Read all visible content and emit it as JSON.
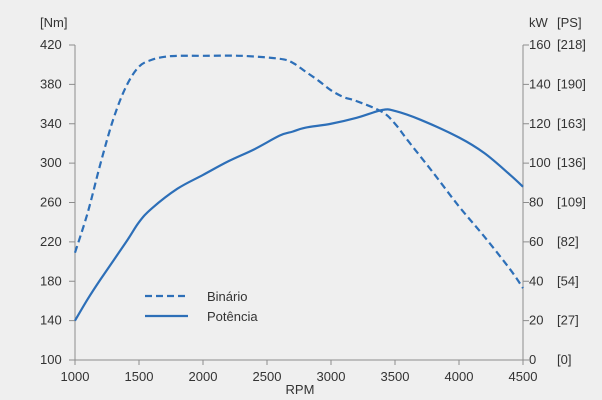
{
  "chart_data": {
    "type": "line",
    "xlabel": "RPM",
    "x_ticks": [
      1000,
      1500,
      2000,
      2500,
      3000,
      3500,
      4000,
      4500
    ],
    "xlim": [
      1000,
      4500
    ],
    "y_left": {
      "unit_label": "[Nm]",
      "ticks": [
        100,
        140,
        180,
        220,
        260,
        300,
        340,
        380,
        420
      ],
      "lim": [
        100,
        420
      ]
    },
    "y_right": {
      "unit_label_kw": "kW",
      "unit_label_ps": "[PS]",
      "ticks": [
        {
          "kw": 0,
          "kw_label": "0",
          "ps_label": "[0]"
        },
        {
          "kw": 20,
          "kw_label": "20",
          "ps_label": "[27]"
        },
        {
          "kw": 40,
          "kw_label": "40",
          "ps_label": "[54]"
        },
        {
          "kw": 60,
          "kw_label": "60",
          "ps_label": "[82]"
        },
        {
          "kw": 80,
          "kw_label": "80",
          "ps_label": "[109]"
        },
        {
          "kw": 100,
          "kw_label": "100",
          "ps_label": "[136]"
        },
        {
          "kw": 120,
          "kw_label": "120",
          "ps_label": "[163]"
        },
        {
          "kw": 140,
          "kw_label": "140",
          "ps_label": "[190]"
        },
        {
          "kw": 160,
          "kw_label": "160",
          "ps_label": "[218]"
        }
      ],
      "lim": [
        0,
        160
      ]
    },
    "legend_position": "bottom-left",
    "series": [
      {
        "name": "Binário",
        "axis": "left",
        "style": "dashed",
        "color": "#2d6fb8",
        "points": [
          [
            1000,
            209
          ],
          [
            1100,
            250
          ],
          [
            1200,
            300
          ],
          [
            1300,
            345
          ],
          [
            1400,
            378
          ],
          [
            1500,
            398
          ],
          [
            1600,
            405
          ],
          [
            1700,
            408
          ],
          [
            1800,
            409
          ],
          [
            2000,
            409
          ],
          [
            2300,
            409
          ],
          [
            2600,
            406
          ],
          [
            2700,
            402
          ],
          [
            2800,
            393
          ],
          [
            2900,
            384
          ],
          [
            3000,
            374
          ],
          [
            3100,
            367
          ],
          [
            3200,
            363
          ],
          [
            3400,
            352
          ],
          [
            3500,
            340
          ],
          [
            3600,
            323
          ],
          [
            3800,
            290
          ],
          [
            4000,
            256
          ],
          [
            4200,
            225
          ],
          [
            4400,
            192
          ],
          [
            4500,
            173
          ]
        ]
      },
      {
        "name": "Potência",
        "axis": "right",
        "style": "solid",
        "color": "#2d6fb8",
        "points": [
          [
            1000,
            20
          ],
          [
            1100,
            31
          ],
          [
            1200,
            41
          ],
          [
            1400,
            60
          ],
          [
            1500,
            70
          ],
          [
            1600,
            77
          ],
          [
            1800,
            87
          ],
          [
            2000,
            94
          ],
          [
            2200,
            101
          ],
          [
            2400,
            107
          ],
          [
            2600,
            114
          ],
          [
            2700,
            116
          ],
          [
            2800,
            118
          ],
          [
            3000,
            120
          ],
          [
            3200,
            123
          ],
          [
            3400,
            127
          ],
          [
            3500,
            126.5
          ],
          [
            3700,
            122
          ],
          [
            4000,
            113
          ],
          [
            4200,
            105
          ],
          [
            4400,
            94
          ],
          [
            4500,
            88
          ]
        ]
      }
    ]
  }
}
